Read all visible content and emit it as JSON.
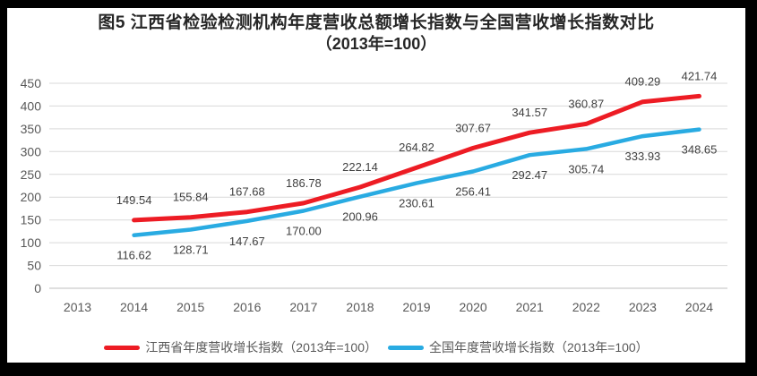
{
  "chart_data": {
    "type": "line",
    "title": "图5  江西省检验检测机构年度营收总额增长指数与全国营收增长指数对比",
    "subtitle": "（2013年=100）",
    "categories": [
      "2013",
      "2014",
      "2015",
      "2016",
      "2017",
      "2018",
      "2019",
      "2020",
      "2021",
      "2022",
      "2023",
      "2024"
    ],
    "series": [
      {
        "name": "江西省年度营收增长指数（2013年=100）",
        "color": "#ED1C24",
        "stroke_width": 5,
        "label_position": "above",
        "values": [
          null,
          149.54,
          155.84,
          167.68,
          186.78,
          222.14,
          264.82,
          307.67,
          341.57,
          360.87,
          409.29,
          421.74
        ]
      },
      {
        "name": "全国年度营收增长指数（2013年=100）",
        "color": "#29ABE2",
        "stroke_width": 4.5,
        "label_position": "below",
        "values": [
          null,
          116.62,
          128.71,
          147.67,
          170.0,
          200.96,
          230.61,
          256.41,
          292.47,
          305.74,
          333.93,
          348.65
        ]
      }
    ],
    "y_axis": {
      "min": 0,
      "max": 450,
      "step": 50
    },
    "grid": true,
    "legend_position": "bottom",
    "label_decimals": 2,
    "colors": {
      "gridline": "#D9D9D9",
      "axis_line": "#BFBFBF",
      "axis_text": "#595959",
      "data_label": "#404040",
      "title_text": "#262626",
      "legend_text": "#595959",
      "frame_border": "#000000",
      "background": "#FFFFFF"
    }
  }
}
